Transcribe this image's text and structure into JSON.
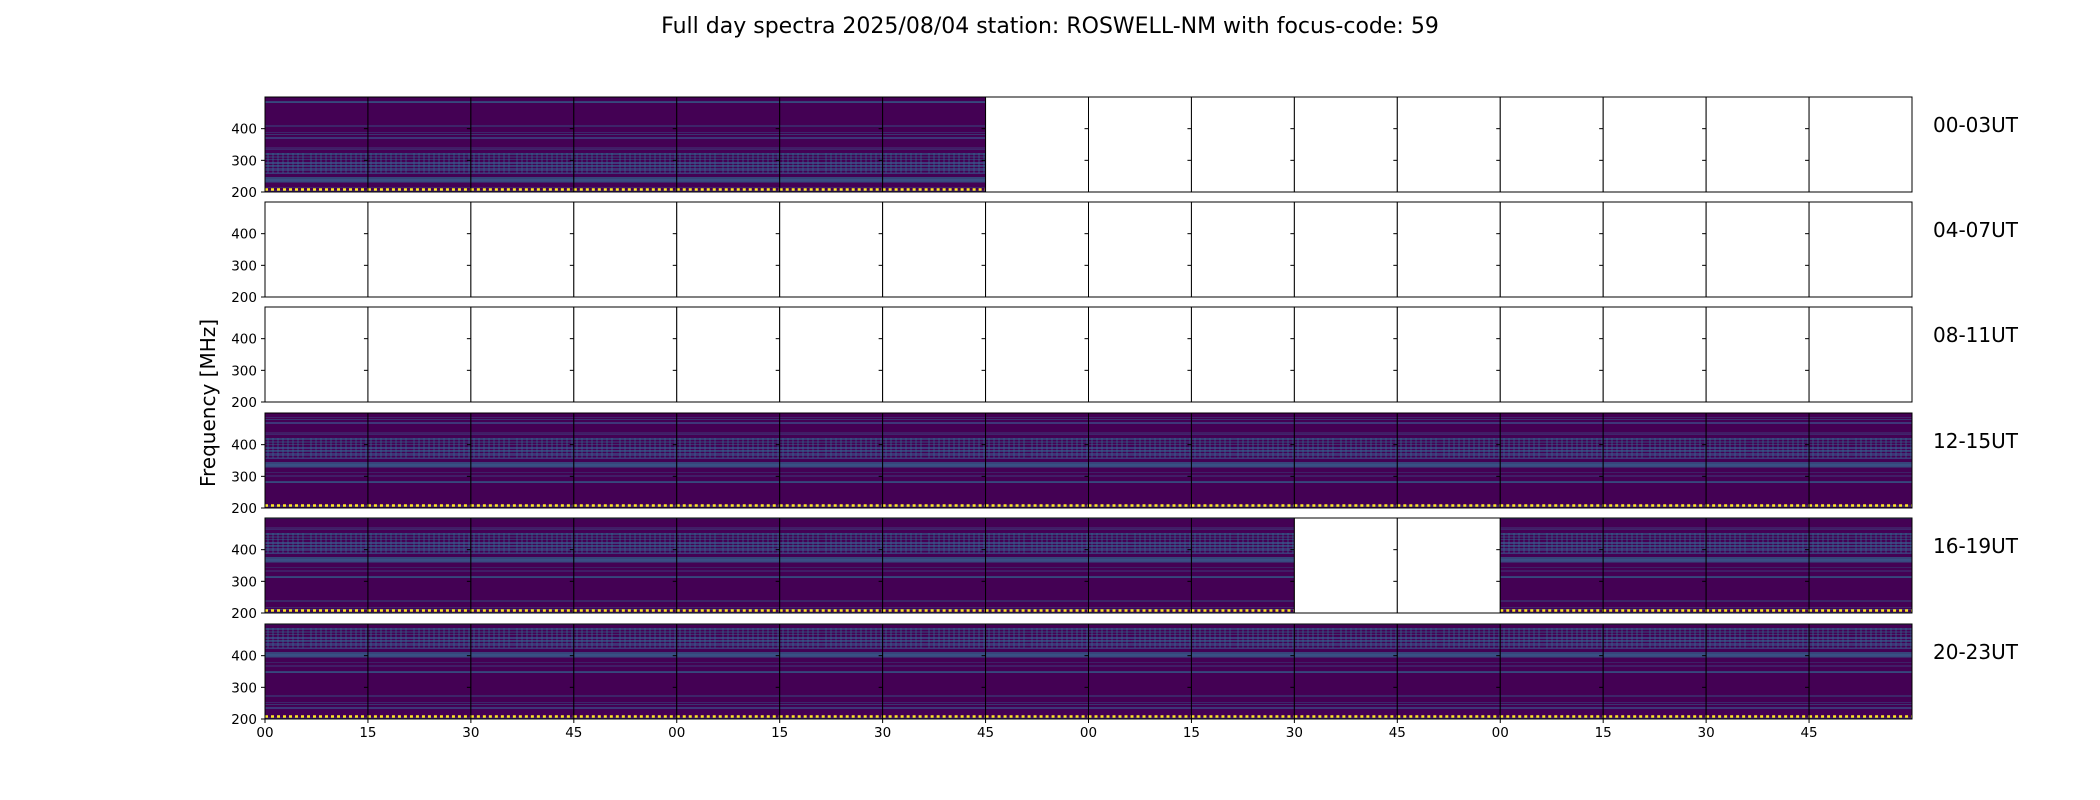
{
  "chart_data": {
    "type": "heatmap",
    "title": "Full day spectra 2025/08/04 station: ROSWELL-NM with focus-code: 59",
    "ylabel": "Frequency [MHz]",
    "ylim": [
      200,
      500
    ],
    "yticks": [
      "400",
      "300",
      "200"
    ],
    "ytick_values": [
      400,
      300,
      200
    ],
    "xticks": [
      "00",
      "15",
      "30",
      "45",
      "00",
      "15",
      "30",
      "45",
      "00",
      "15",
      "30",
      "45",
      "00",
      "15",
      "30",
      "45"
    ],
    "colormap": "viridis",
    "rows": [
      {
        "label": "00-03UT",
        "panels_with_data": [
          1,
          1,
          1,
          1,
          1,
          1,
          1,
          0,
          0,
          0,
          0,
          0,
          0,
          0,
          0,
          0
        ]
      },
      {
        "label": "04-07UT",
        "panels_with_data": [
          0,
          0,
          0,
          0,
          0,
          0,
          0,
          0,
          0,
          0,
          0,
          0,
          0,
          0,
          0,
          0
        ]
      },
      {
        "label": "08-11UT",
        "panels_with_data": [
          0,
          0,
          0,
          0,
          0,
          0,
          0,
          0,
          0,
          0,
          0,
          0,
          0,
          0,
          0,
          0
        ]
      },
      {
        "label": "12-15UT",
        "panels_with_data": [
          1,
          1,
          1,
          1,
          1,
          1,
          1,
          1,
          1,
          1,
          1,
          1,
          1,
          1,
          1,
          1
        ]
      },
      {
        "label": "16-19UT",
        "panels_with_data": [
          1,
          1,
          1,
          1,
          1,
          1,
          1,
          1,
          1,
          1,
          0,
          0,
          1,
          1,
          1,
          1
        ]
      },
      {
        "label": "20-23UT",
        "panels_with_data": [
          1,
          1,
          1,
          1,
          1,
          1,
          1,
          1,
          1,
          1,
          1,
          1,
          1,
          1,
          1,
          1
        ]
      }
    ],
    "colors": {
      "background": "#440154",
      "band_low": "#3b528b",
      "band_mid": "#31688e",
      "bright": "#35b779",
      "edge_yellow": "#fde725"
    }
  }
}
